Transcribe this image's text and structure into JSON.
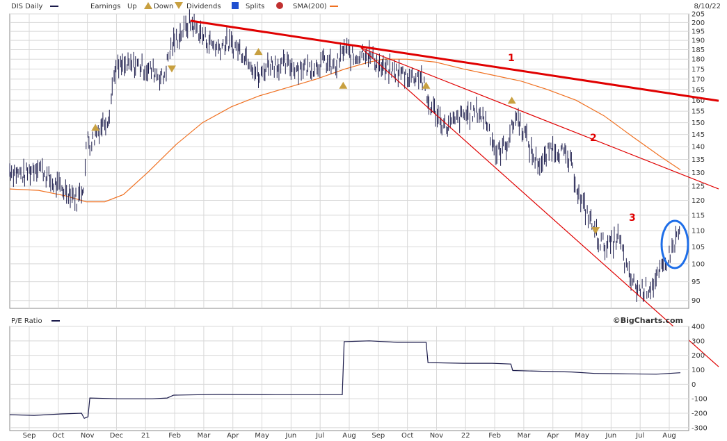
{
  "header": {
    "symbol_label": "DIS Daily",
    "earnings_label": "Earnings",
    "up_label": "Up",
    "down_label": "Down",
    "dividends_label": "Dividends",
    "splits_label": "Splits",
    "sma_label": "SMA(200)",
    "date_label": "8/10/22",
    "pe_label": "P/E Ratio",
    "source_label": "©BigCharts.com"
  },
  "colors": {
    "price": "#1a1a4a",
    "sma": "#f07020",
    "trend": "#e00000",
    "earn_marker": "#c8a040",
    "div_marker": "#2050d0",
    "split_marker": "#c03030",
    "circle": "#1e6ee8",
    "grid": "#d8d8d8"
  },
  "chart_data": [
    {
      "type": "line",
      "name": "DIS Daily price",
      "yscale": "log",
      "ylim": [
        88,
        205
      ],
      "y_ticks": [
        90,
        95,
        100,
        105,
        110,
        115,
        120,
        125,
        130,
        135,
        140,
        145,
        150,
        155,
        160,
        165,
        170,
        175,
        180,
        185,
        190,
        195,
        200,
        205
      ],
      "x_ticks": [
        "Sep",
        "Oct",
        "Nov",
        "Dec",
        "21",
        "Feb",
        "Mar",
        "Apr",
        "May",
        "Jun",
        "Jul",
        "Aug",
        "Sep",
        "Oct",
        "Nov",
        "22",
        "Feb",
        "Mar",
        "Apr",
        "May",
        "Jun",
        "Jul",
        "Aug"
      ],
      "x_range": [
        "2020-08-20",
        "2022-08-10"
      ],
      "series": [
        {
          "name": "DIS Daily",
          "points": [
            [
              "2020-08-20",
              131
            ],
            [
              "2020-09-05",
              129
            ],
            [
              "2020-09-20",
              133
            ],
            [
              "2020-10-05",
              126
            ],
            [
              "2020-10-15",
              124
            ],
            [
              "2020-10-25",
              123
            ],
            [
              "2020-11-01",
              120
            ],
            [
              "2020-11-08",
              126
            ],
            [
              "2020-11-12",
              145
            ],
            [
              "2020-11-15",
              141
            ],
            [
              "2020-11-25",
              148
            ],
            [
              "2020-12-05",
              153
            ],
            [
              "2020-12-11",
              175
            ],
            [
              "2020-12-20",
              176
            ],
            [
              "2021-01-05",
              177
            ],
            [
              "2021-01-15",
              175
            ],
            [
              "2021-01-25",
              173
            ],
            [
              "2021-02-01",
              170
            ],
            [
              "2021-02-10",
              187
            ],
            [
              "2021-02-20",
              194
            ],
            [
              "2021-03-02",
              200
            ],
            [
              "2021-03-10",
              196
            ],
            [
              "2021-03-20",
              190
            ],
            [
              "2021-04-01",
              186
            ],
            [
              "2021-04-10",
              189
            ],
            [
              "2021-04-25",
              185
            ],
            [
              "2021-05-05",
              180
            ],
            [
              "2021-05-15",
              170
            ],
            [
              "2021-05-25",
              178
            ],
            [
              "2021-06-10",
              177
            ],
            [
              "2021-06-25",
              176
            ],
            [
              "2021-07-10",
              176
            ],
            [
              "2021-07-25",
              179
            ],
            [
              "2021-08-05",
              175
            ],
            [
              "2021-08-15",
              186
            ],
            [
              "2021-08-25",
              180
            ],
            [
              "2021-09-05",
              185
            ],
            [
              "2021-09-15",
              180
            ],
            [
              "2021-09-25",
              175
            ],
            [
              "2021-10-05",
              174
            ],
            [
              "2021-10-15",
              173
            ],
            [
              "2021-10-25",
              171
            ],
            [
              "2021-11-05",
              172
            ],
            [
              "2021-11-12",
              159
            ],
            [
              "2021-11-20",
              155
            ],
            [
              "2021-12-01",
              148
            ],
            [
              "2021-12-10",
              150
            ],
            [
              "2021-12-20",
              153
            ],
            [
              "2022-01-05",
              155
            ],
            [
              "2022-01-15",
              150
            ],
            [
              "2022-01-25",
              137
            ],
            [
              "2022-02-05",
              141
            ],
            [
              "2022-02-15",
              153
            ],
            [
              "2022-02-25",
              145
            ],
            [
              "2022-03-05",
              136
            ],
            [
              "2022-03-15",
              133
            ],
            [
              "2022-03-25",
              140
            ],
            [
              "2022-04-05",
              138
            ],
            [
              "2022-04-15",
              133
            ],
            [
              "2022-04-25",
              120
            ],
            [
              "2022-05-05",
              114
            ],
            [
              "2022-05-15",
              107
            ],
            [
              "2022-05-25",
              105
            ],
            [
              "2022-06-05",
              108
            ],
            [
              "2022-06-15",
              97
            ],
            [
              "2022-06-25",
              93
            ],
            [
              "2022-07-05",
              93
            ],
            [
              "2022-07-15",
              95
            ],
            [
              "2022-07-25",
              100
            ],
            [
              "2022-08-01",
              104
            ],
            [
              "2022-08-05",
              107
            ],
            [
              "2022-08-10",
              110
            ]
          ]
        },
        {
          "name": "SMA(200)",
          "points": [
            [
              "2020-08-20",
              124
            ],
            [
              "2020-09-20",
              123.5
            ],
            [
              "2020-10-20",
              121.5
            ],
            [
              "2020-11-10",
              119.5
            ],
            [
              "2020-11-30",
              119.5
            ],
            [
              "2020-12-20",
              122
            ],
            [
              "2021-01-15",
              130
            ],
            [
              "2021-02-15",
              141
            ],
            [
              "2021-03-15",
              150
            ],
            [
              "2021-04-15",
              157
            ],
            [
              "2021-05-15",
              162
            ],
            [
              "2021-06-15",
              166
            ],
            [
              "2021-07-15",
              170
            ],
            [
              "2021-08-15",
              175
            ],
            [
              "2021-09-10",
              178.5
            ],
            [
              "2021-09-25",
              180
            ],
            [
              "2021-10-20",
              180
            ],
            [
              "2021-11-20",
              178.5
            ],
            [
              "2021-12-20",
              175
            ],
            [
              "2022-01-20",
              172
            ],
            [
              "2022-02-20",
              169
            ],
            [
              "2022-03-20",
              165
            ],
            [
              "2022-04-20",
              160
            ],
            [
              "2022-05-20",
              153
            ],
            [
              "2022-06-20",
              144
            ],
            [
              "2022-07-20",
              136
            ],
            [
              "2022-08-10",
              131
            ]
          ]
        }
      ],
      "trendlines": [
        {
          "label": "1",
          "from": [
            "2021-03-02",
            201
          ],
          "to": [
            "2022-08-10",
            161
          ]
        },
        {
          "label": "2",
          "from": [
            "2021-09-01",
            186
          ],
          "to": [
            "2022-08-10",
            127
          ]
        },
        {
          "label": "3",
          "from": [
            "2021-09-01",
            186
          ],
          "to": [
            "2022-08-10",
            79
          ]
        }
      ],
      "earnings_up": [
        [
          "2020-11-20",
          148
        ],
        [
          "2021-05-14",
          184
        ],
        [
          "2021-08-13",
          167
        ],
        [
          "2021-11-10",
          167
        ],
        [
          "2022-02-10",
          160
        ]
      ],
      "earnings_down": [
        [
          "2021-02-10",
          175
        ],
        [
          "2022-05-11",
          110
        ]
      ],
      "annotations": [
        "1",
        "2",
        "3"
      ]
    },
    {
      "type": "line",
      "name": "P/E Ratio",
      "ylim": [
        -320,
        400
      ],
      "y_ticks": [
        -300,
        -200,
        -100,
        0,
        100,
        200,
        300,
        400
      ],
      "series": [
        {
          "name": "P/E Ratio",
          "points": [
            [
              "2020-08-20",
              -210
            ],
            [
              "2020-09-15",
              -215
            ],
            [
              "2020-10-15",
              -205
            ],
            [
              "2020-11-05",
              -200
            ],
            [
              "2020-11-08",
              -235
            ],
            [
              "2020-11-12",
              -225
            ],
            [
              "2020-11-14",
              -95
            ],
            [
              "2020-12-15",
              -100
            ],
            [
              "2021-01-20",
              -100
            ],
            [
              "2021-02-05",
              -95
            ],
            [
              "2021-02-12",
              -75
            ],
            [
              "2021-04-01",
              -70
            ],
            [
              "2021-06-01",
              -72
            ],
            [
              "2021-08-12",
              -72
            ],
            [
              "2021-08-14",
              295
            ],
            [
              "2021-09-10",
              300
            ],
            [
              "2021-10-10",
              290
            ],
            [
              "2021-11-10",
              290
            ],
            [
              "2021-11-12",
              150
            ],
            [
              "2021-12-20",
              145
            ],
            [
              "2022-01-20",
              145
            ],
            [
              "2022-02-09",
              140
            ],
            [
              "2022-02-11",
              95
            ],
            [
              "2022-03-15",
              90
            ],
            [
              "2022-04-15",
              85
            ],
            [
              "2022-05-10",
              75
            ],
            [
              "2022-05-12",
              75
            ],
            [
              "2022-06-15",
              72
            ],
            [
              "2022-07-15",
              70
            ],
            [
              "2022-08-10",
              80
            ]
          ]
        }
      ]
    }
  ]
}
